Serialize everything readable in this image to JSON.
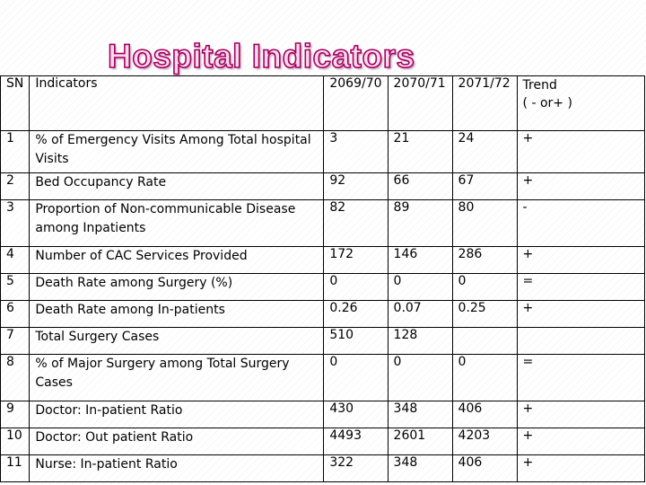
{
  "title": "Hospital Indicators",
  "header": {
    "sn": "SN",
    "indicators": "Indicators",
    "y1": "2069/70",
    "y2": "2070/71",
    "y3": "2071/72",
    "trend_line1": "Trend",
    "trend_line2": "( - or+ )"
  },
  "rows": [
    {
      "sn": "1",
      "indicator": "% of Emergency Visits Among Total hospital Visits",
      "y1": "3",
      "y2": "21",
      "y3": "24",
      "trend": "+"
    },
    {
      "sn": "2",
      "indicator": "Bed Occupancy Rate",
      "y1": "92",
      "y2": "66",
      "y3": "67",
      "trend": "+"
    },
    {
      "sn": "3",
      "indicator": "Proportion of Non-communicable Disease among Inpatients",
      "y1": "82",
      "y2": "89",
      "y3": "80",
      "trend": "-"
    },
    {
      "sn": "4",
      "indicator": "Number of CAC Services Provided",
      "y1": "172",
      "y2": "146",
      "y3": "286",
      "trend": "+"
    },
    {
      "sn": "5",
      "indicator": "Death Rate among Surgery (%)",
      "y1": "0",
      "y2": "0",
      "y3": "0",
      "trend": "="
    },
    {
      "sn": "6",
      "indicator": "Death Rate among In-patients",
      "y1": "0.26",
      "y2": "0.07",
      "y3": "0.25",
      "trend": "+"
    },
    {
      "sn": "7",
      "indicator": "Total Surgery Cases",
      "y1": "510",
      "y2": "128",
      "y3": "",
      "trend": ""
    },
    {
      "sn": "8",
      "indicator": "% of Major Surgery among Total Surgery Cases",
      "y1": "0",
      "y2": "0",
      "y3": "0",
      "trend": "="
    },
    {
      "sn": "9",
      "indicator": "Doctor: In-patient Ratio",
      "y1": "430",
      "y2": "348",
      "y3": "406",
      "trend": "+"
    },
    {
      "sn": "10",
      "indicator": "Doctor: Out patient Ratio",
      "y1": "4493",
      "y2": "2601",
      "y3": "4203",
      "trend": "+"
    },
    {
      "sn": "11",
      "indicator": "Nurse: In-patient Ratio",
      "y1": "322",
      "y2": "348",
      "y3": "406",
      "trend": "+"
    }
  ]
}
